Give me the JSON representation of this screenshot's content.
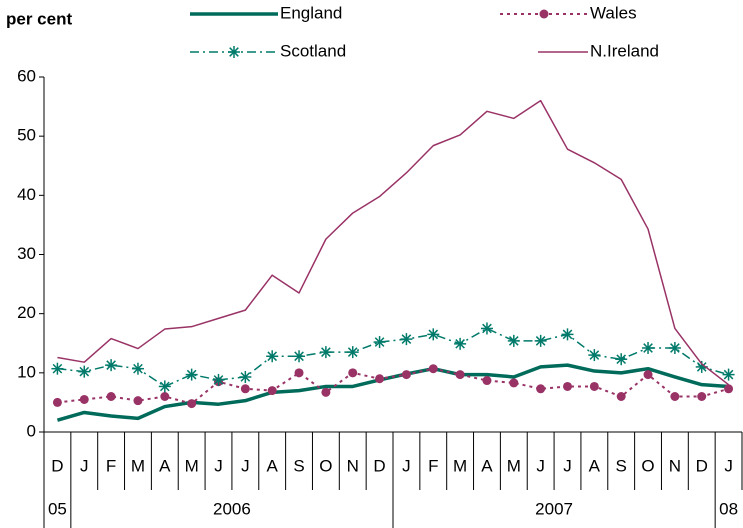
{
  "chart_data": {
    "type": "line",
    "y_axis_label": "per cent",
    "categories": [
      "D",
      "J",
      "F",
      "M",
      "A",
      "M",
      "J",
      "J",
      "A",
      "S",
      "O",
      "N",
      "D",
      "J",
      "F",
      "M",
      "A",
      "M",
      "J",
      "J",
      "A",
      "S",
      "O",
      "N",
      "D",
      "J"
    ],
    "x_groups": [
      {
        "label": "05",
        "count": 1
      },
      {
        "label": "2006",
        "count": 12
      },
      {
        "label": "2007",
        "count": 12
      },
      {
        "label": "08",
        "count": 1
      }
    ],
    "ylim": [
      0,
      60
    ],
    "yticks": [
      0,
      10,
      20,
      30,
      40,
      50,
      60
    ],
    "series": [
      {
        "name": "England",
        "color": "#006b5a",
        "style": "solid-thick",
        "marker": "none",
        "values": [
          2,
          3.3,
          2.7,
          2.3,
          4.3,
          5,
          4.7,
          5.3,
          6.7,
          7,
          7.7,
          7.7,
          8.8,
          9.8,
          10.7,
          9.7,
          9.7,
          9.3,
          11,
          11.3,
          10.3,
          10,
          10.7,
          9.3,
          8,
          7.7
        ]
      },
      {
        "name": "Wales",
        "color": "#993366",
        "style": "dotted",
        "marker": "circle",
        "values": [
          5,
          5.5,
          6,
          5.3,
          6,
          4.8,
          8.5,
          7.3,
          7,
          10,
          6.7,
          10,
          9,
          9.7,
          10.7,
          9.7,
          8.7,
          8.3,
          7.3,
          7.7,
          7.7,
          6,
          9.7,
          6,
          6,
          7.3
        ]
      },
      {
        "name": "Scotland",
        "color": "#007a6a",
        "style": "dash-dot",
        "marker": "asterisk",
        "values": [
          10.7,
          10.2,
          11.3,
          10.7,
          7.7,
          9.7,
          8.8,
          9.3,
          12.8,
          12.8,
          13.5,
          13.5,
          15.2,
          15.7,
          16.5,
          14.9,
          17.5,
          15.4,
          15.4,
          16.5,
          13,
          12.3,
          14.2,
          14.2,
          11,
          9.7
        ]
      },
      {
        "name": "N.Ireland",
        "color": "#993366",
        "style": "solid-thin",
        "marker": "none",
        "values": [
          12.6,
          11.8,
          15.8,
          14.1,
          17.4,
          17.8,
          19.2,
          20.6,
          26.5,
          23.5,
          32.6,
          37,
          39.8,
          43.8,
          48.4,
          50.2,
          54.2,
          53,
          56,
          47.8,
          45.5,
          42.7,
          34.3,
          17.5,
          11.5,
          8
        ]
      }
    ]
  }
}
